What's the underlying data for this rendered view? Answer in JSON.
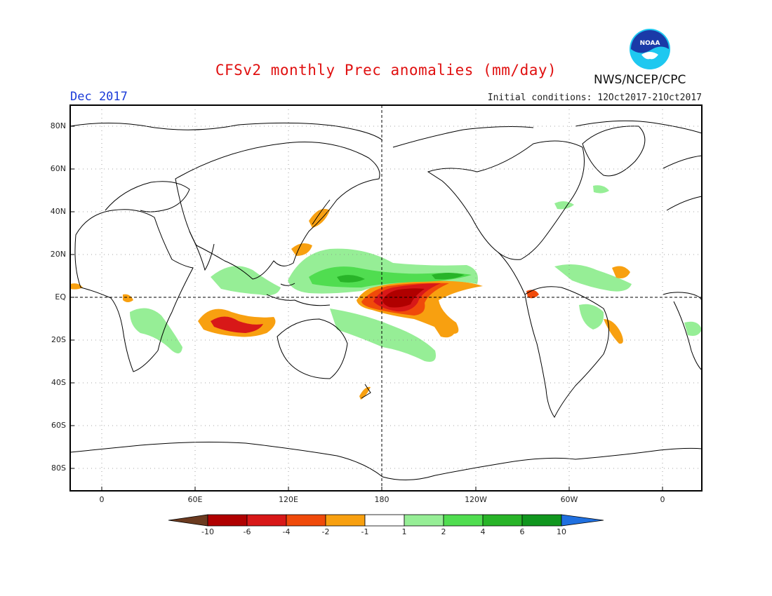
{
  "title": "CFSv2 monthly Prec anomalies (mm/day)",
  "month": "Dec 2017",
  "initial_conditions": "Initial conditions: 12Oct2017-21Oct2017",
  "agency": "NWS/NCEP/CPC",
  "logo": {
    "text": "NOAA",
    "colors": {
      "outer": "#1ec8f0",
      "inner": "#1a3aa8"
    }
  },
  "lat_labels": [
    "80N",
    "60N",
    "40N",
    "20N",
    "EQ",
    "20S",
    "40S",
    "60S",
    "80S"
  ],
  "lon_labels": [
    "0",
    "60E",
    "120E",
    "180",
    "120W",
    "60W",
    "0"
  ],
  "colorbar": {
    "labels": [
      "-10",
      "-6",
      "-4",
      "-2",
      "-1",
      "1",
      "2",
      "4",
      "6",
      "10"
    ],
    "colors": [
      "#6b3a1f",
      "#b00000",
      "#d81818",
      "#f04a0a",
      "#f8a010",
      "#ffffff",
      "#96ee96",
      "#50dd50",
      "#28b428",
      "#10961e",
      "#2070e0"
    ]
  },
  "colors": {
    "coast": "#000000",
    "grid": "#888888"
  }
}
